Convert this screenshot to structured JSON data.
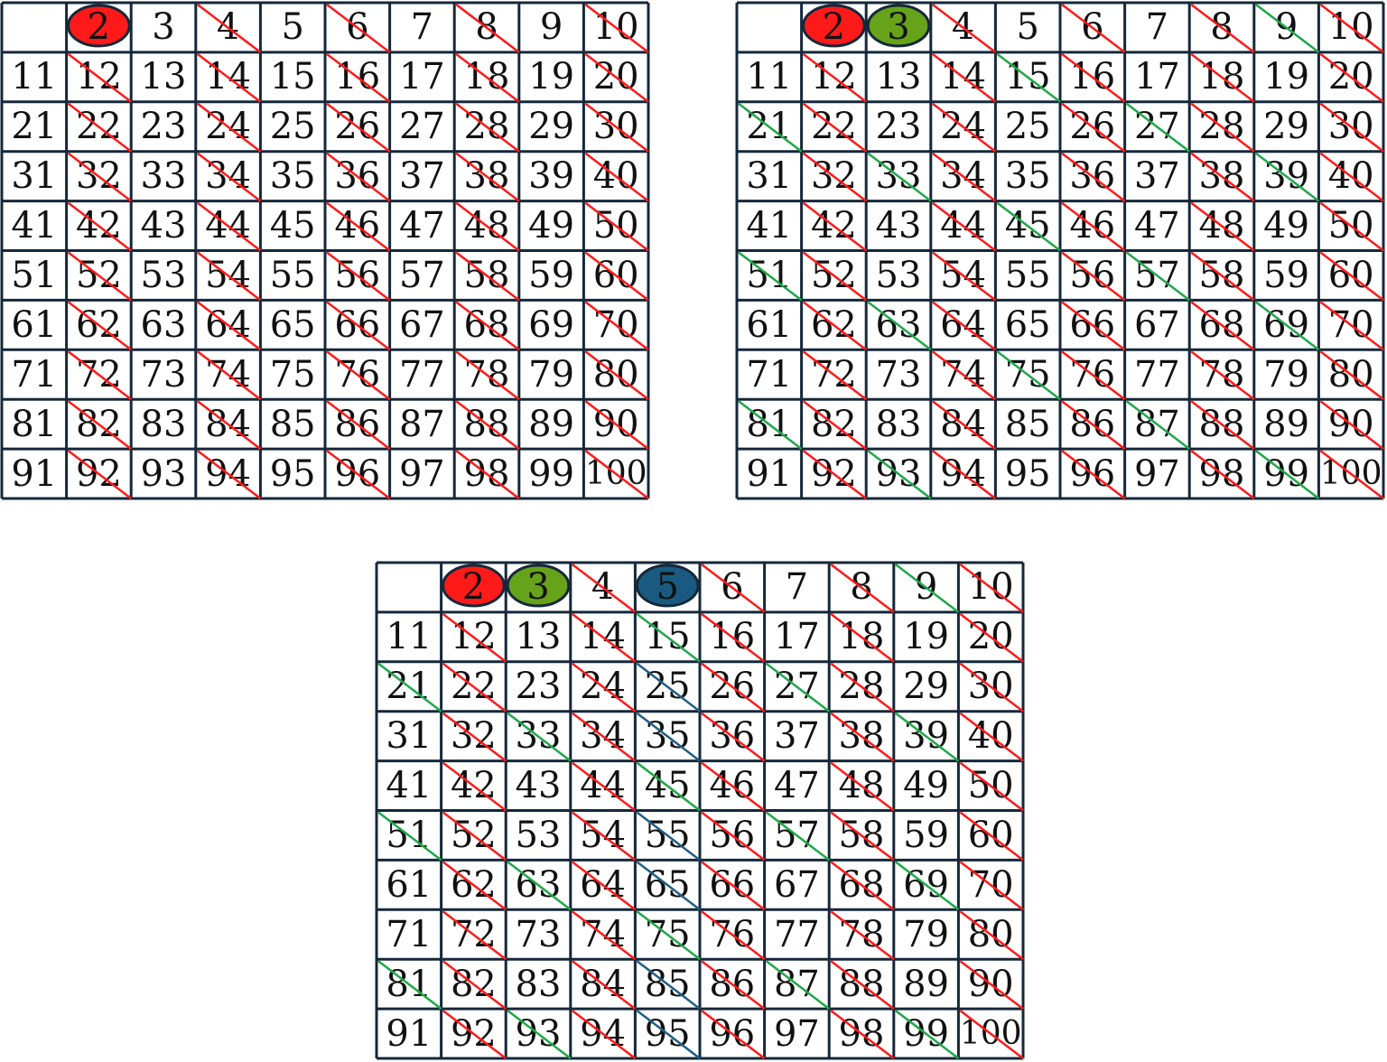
{
  "numbers": [
    "",
    "2",
    "3",
    "4",
    "5",
    "6",
    "7",
    "8",
    "9",
    "10",
    "11",
    "12",
    "13",
    "14",
    "15",
    "16",
    "17",
    "18",
    "19",
    "20",
    "21",
    "22",
    "23",
    "24",
    "25",
    "26",
    "27",
    "28",
    "29",
    "30",
    "31",
    "32",
    "33",
    "34",
    "35",
    "36",
    "37",
    "38",
    "39",
    "40",
    "41",
    "42",
    "43",
    "44",
    "45",
    "46",
    "47",
    "48",
    "49",
    "50",
    "51",
    "52",
    "53",
    "54",
    "55",
    "56",
    "57",
    "58",
    "59",
    "60",
    "61",
    "62",
    "63",
    "64",
    "65",
    "66",
    "67",
    "68",
    "69",
    "70",
    "71",
    "72",
    "73",
    "74",
    "75",
    "76",
    "77",
    "78",
    "79",
    "80",
    "81",
    "82",
    "83",
    "84",
    "85",
    "86",
    "87",
    "88",
    "89",
    "90",
    "91",
    "92",
    "93",
    "94",
    "95",
    "96",
    "97",
    "98",
    "99",
    "100"
  ],
  "colors": {
    "grid_border": "#15283a",
    "prime_2": "#ff1a1a",
    "prime_3": "#66a31a",
    "prime_5": "#1a5a80",
    "strike_2": "#ff1a1a",
    "strike_3": "#1fa84a",
    "strike_5": "#1f5f86"
  },
  "grids": [
    {
      "name": "grid-sieve-step-2",
      "primes": [
        2
      ]
    },
    {
      "name": "grid-sieve-step-3",
      "primes": [
        2,
        3
      ]
    },
    {
      "name": "grid-sieve-step-5",
      "primes": [
        2,
        3,
        5
      ]
    }
  ]
}
